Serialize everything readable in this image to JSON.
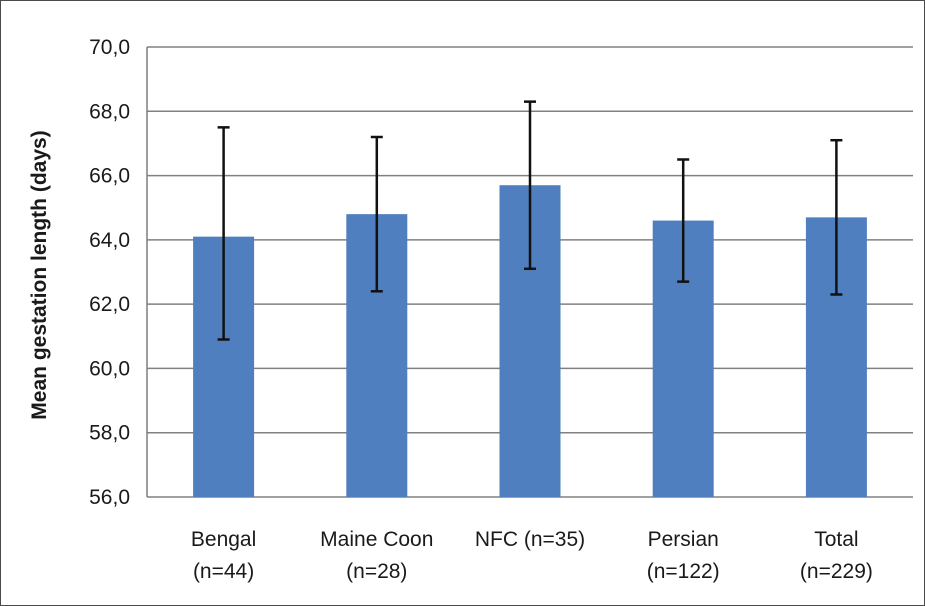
{
  "chart_data": {
    "type": "bar",
    "categories": [
      [
        "Bengal",
        "(n=44)"
      ],
      [
        "Maine Coon",
        "(n=28)"
      ],
      [
        "NFC (n=35)"
      ],
      [
        "Persian",
        "(n=122)"
      ],
      [
        "Total",
        "(n=229)"
      ]
    ],
    "values": [
      64.1,
      64.8,
      65.7,
      64.6,
      64.7
    ],
    "error_low": [
      60.9,
      62.4,
      63.1,
      62.7,
      62.3
    ],
    "error_high": [
      67.5,
      67.2,
      68.3,
      66.5,
      67.1
    ],
    "ylabel": "Mean gestation length (days)",
    "xlabel": "",
    "ylim": [
      56.0,
      70.0
    ],
    "yticks": [
      56.0,
      58.0,
      60.0,
      62.0,
      64.0,
      66.0,
      68.0,
      70.0
    ],
    "ytick_labels": [
      "56,0",
      "58,0",
      "60,0",
      "62,0",
      "64,0",
      "66,0",
      "68,0",
      "70,0"
    ],
    "bar_color": "#4f7fbf",
    "grid": true
  }
}
